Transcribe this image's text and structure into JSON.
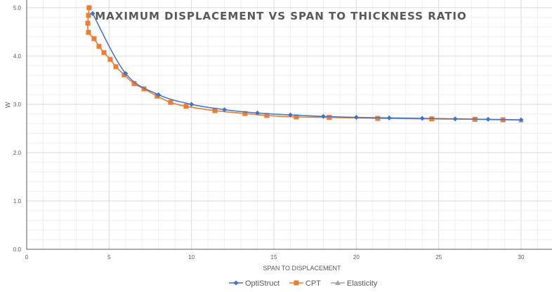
{
  "chart_data": {
    "type": "line",
    "title": "MAXIMUM DISPLACEMENT VS SPAN TO THICKNESS RATIO",
    "xlabel": "SPAN TO DISPLACEMENT",
    "ylabel": "W",
    "xlim": [
      0,
      32
    ],
    "ylim": [
      0,
      5
    ],
    "xticks": [
      "0",
      "5",
      "10",
      "15",
      "20",
      "25",
      "30"
    ],
    "yticks": [
      "0.0",
      "1.0",
      "2.0",
      "3.0",
      "4.0",
      "5.0"
    ],
    "grid": true,
    "legend_position": "bottom",
    "series": [
      {
        "name": "OptiStruct",
        "color": "#4472C4",
        "marker": "diamond",
        "x": [
          4,
          6,
          8,
          10,
          12,
          14,
          16,
          18,
          20,
          22,
          24,
          26,
          28,
          30
        ],
        "y": [
          4.88,
          3.64,
          3.2,
          3.0,
          2.89,
          2.82,
          2.78,
          2.75,
          2.73,
          2.72,
          2.71,
          2.7,
          2.69,
          2.68
        ]
      },
      {
        "name": "CPT",
        "color": "#ED7D31",
        "marker": "square",
        "x": [
          3.79,
          3.75,
          3.71,
          3.75,
          4.09,
          4.39,
          4.69,
          5.07,
          5.41,
          5.92,
          6.52,
          7.12,
          7.92,
          8.73,
          9.67,
          11.42,
          13.25,
          14.57,
          16.36,
          18.36,
          21.3,
          24.58,
          27.2,
          28.9
        ],
        "y": [
          5.0,
          4.84,
          4.68,
          4.49,
          4.36,
          4.2,
          4.07,
          3.93,
          3.78,
          3.61,
          3.43,
          3.32,
          3.17,
          3.04,
          2.96,
          2.87,
          2.81,
          2.77,
          2.74,
          2.73,
          2.71,
          2.7,
          2.69,
          2.68
        ]
      },
      {
        "name": "Elasticity",
        "color": "#A5A5A5",
        "marker": "triangle",
        "x": [
          3.79,
          3.75,
          3.71,
          3.75,
          4.09,
          4.39,
          4.69,
          5.07,
          5.41,
          5.92,
          6.52,
          7.12,
          7.92,
          8.73,
          9.67,
          11.42,
          13.25,
          14.57,
          16.36,
          18.36,
          21.3,
          24.58,
          27.2,
          28.9,
          30
        ],
        "y": [
          5.0,
          4.84,
          4.68,
          4.49,
          4.36,
          4.2,
          4.07,
          3.93,
          3.78,
          3.61,
          3.43,
          3.32,
          3.17,
          3.04,
          2.96,
          2.87,
          2.81,
          2.77,
          2.74,
          2.73,
          2.71,
          2.7,
          2.69,
          2.68,
          2.67
        ]
      }
    ]
  }
}
